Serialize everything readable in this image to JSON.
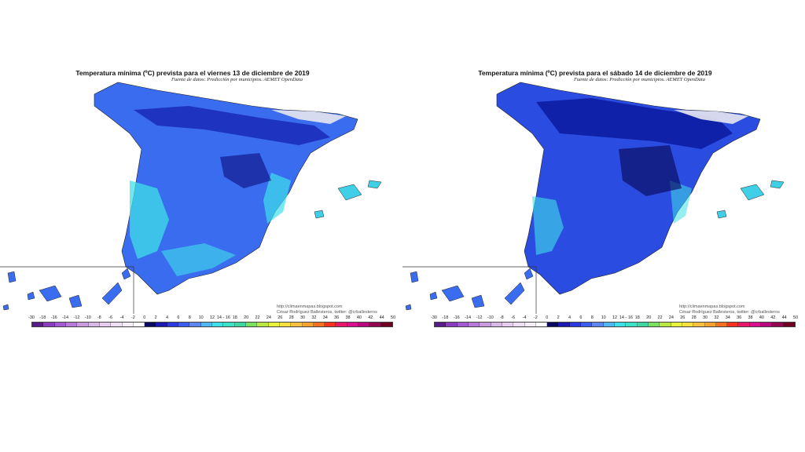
{
  "maps": [
    {
      "title": "Temperatura mínima (ºC) prevista para el viernes 13 de diciembre de 2019",
      "source": "Fuente de datos: Predicción por municipios. AEMET OpenData",
      "credit_line1": "http://climaenmapas.blogspot.com",
      "credit_line2": "César Rodríguez Ballesteros, twitter: @crballesteros"
    },
    {
      "title": "Temperatura mínima (ºC) prevista para el sábado 14 de diciembre de 2019",
      "source": "Fuente de datos: Predicción por municipios. AEMET OpenData",
      "credit_line1": "http://climaenmapas.blogspot.com",
      "credit_line2": "César Rodríguez Ballesteros, twitter: @crballesteros"
    }
  ],
  "legend": {
    "ticks": [
      "-30",
      "-18",
      "-16",
      "-14",
      "-12",
      "-10",
      "-8",
      "-6",
      "-4",
      "-2",
      "0",
      "2",
      "4",
      "6",
      "8",
      "10",
      "12",
      "14 - 16",
      "18",
      "20",
      "22",
      "24",
      "26",
      "28",
      "30",
      "32",
      "34",
      "36",
      "38",
      "40",
      "42",
      "44",
      "50"
    ],
    "colors": [
      "#5a1a8c",
      "#8a3cc0",
      "#a259d3",
      "#b87ad8",
      "#c99ae0",
      "#d9b7e8",
      "#e6ccec",
      "#efdff2",
      "#f6eef7",
      "#ffffff",
      "#0b0b5e",
      "#1a1ab0",
      "#2a3ae0",
      "#3a5cf0",
      "#5c86f0",
      "#4fb8f0",
      "#3fe0e8",
      "#3fe0c8",
      "#3fd8a0",
      "#7ae060",
      "#b8e840",
      "#e8f040",
      "#f8e040",
      "#f8c040",
      "#f8a030",
      "#f87020",
      "#f83020",
      "#e81868",
      "#d8108e",
      "#b80880",
      "#900850",
      "#700020"
    ]
  }
}
